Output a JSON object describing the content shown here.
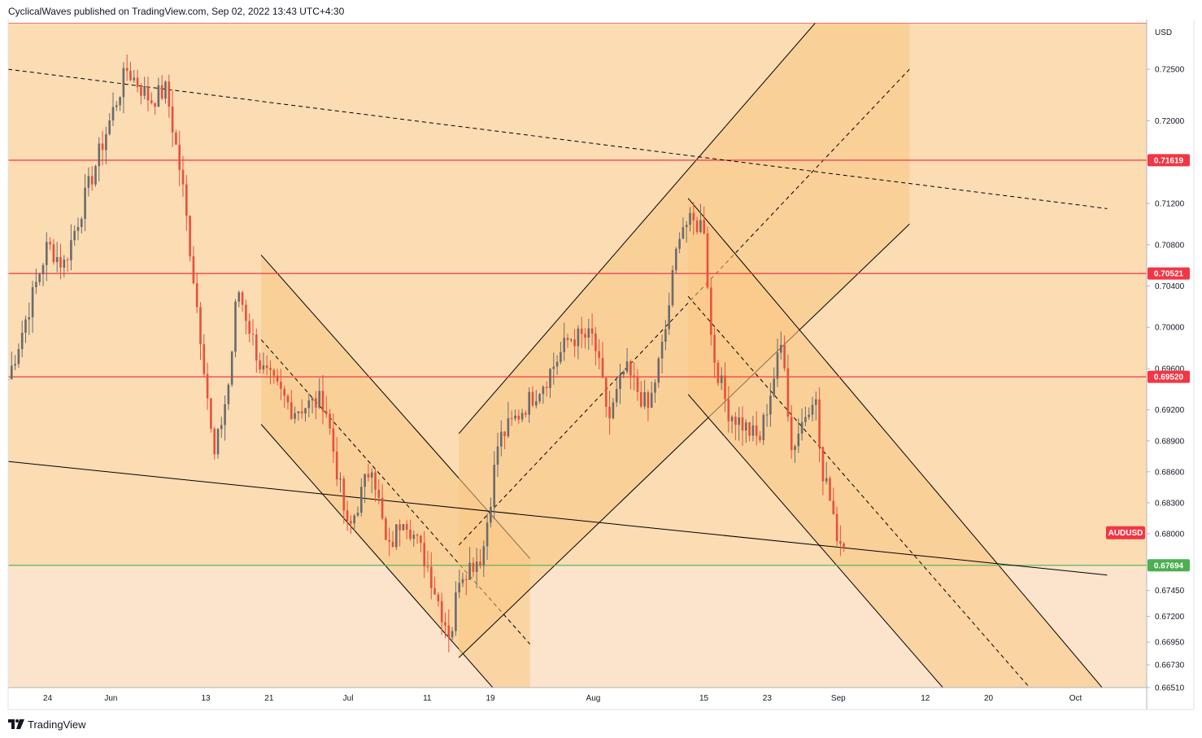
{
  "header": {
    "published_by": "CyclicalWaves published on TradingView.com, Sep 02, 2022 13:43 UTC+4:30"
  },
  "footer": {
    "brand": "TradingView",
    "logo_icon": "tradingview-logo-icon"
  },
  "chart_data": {
    "type": "candlestick",
    "symbol": "AUDUSD",
    "currency": "USD",
    "y_range": [
      0.6651,
      0.7295
    ],
    "y_ticks": [
      "0.72500",
      "0.72000",
      "0.71200",
      "0.70800",
      "0.70400",
      "0.70000",
      "0.69600",
      "0.69200",
      "0.68900",
      "0.68600",
      "0.68300",
      "0.68000",
      "0.67450",
      "0.67200",
      "0.66950",
      "0.66730",
      "0.66510"
    ],
    "x_ticks": [
      {
        "label": "24",
        "date": "2022-05-24"
      },
      {
        "label": "Jun",
        "date": "2022-06-01"
      },
      {
        "label": "13",
        "date": "2022-06-13"
      },
      {
        "label": "21",
        "date": "2022-06-21"
      },
      {
        "label": "Jul",
        "date": "2022-07-01"
      },
      {
        "label": "11",
        "date": "2022-07-11"
      },
      {
        "label": "19",
        "date": "2022-07-19"
      },
      {
        "label": "Aug",
        "date": "2022-08-01"
      },
      {
        "label": "15",
        "date": "2022-08-15"
      },
      {
        "label": "23",
        "date": "2022-08-23"
      },
      {
        "label": "Sep",
        "date": "2022-09-01"
      },
      {
        "label": "12",
        "date": "2022-09-12"
      },
      {
        "label": "20",
        "date": "2022-09-20"
      },
      {
        "label": "Oct",
        "date": "2022-10-01"
      }
    ],
    "horizontal_levels": [
      {
        "value": "0.71619",
        "color": "#f23645"
      },
      {
        "value": "0.70521",
        "color": "#f23645"
      },
      {
        "value": "0.69520",
        "color": "#f23645"
      },
      {
        "value": "0.67694",
        "color": "#4caf50"
      }
    ],
    "top_level": {
      "value": 0.7295,
      "color": "#f23645"
    },
    "last_price_label": {
      "text": "AUDUSD",
      "value": 0.6801,
      "color": "#f23645"
    },
    "colors": {
      "background_upper": "#fbdcb3",
      "background_lower": "#fbe4cb",
      "channel_fill": "#f9c784",
      "up_candle": "#6b6b6b",
      "down_candle": "#e8503a",
      "line": "#000000"
    },
    "candle_anchors": [
      {
        "date": "2022-05-19",
        "close": 0.695
      },
      {
        "date": "2022-05-24",
        "close": 0.708
      },
      {
        "date": "2022-05-26",
        "close": 0.706
      },
      {
        "date": "2022-05-31",
        "close": 0.718
      },
      {
        "date": "2022-06-03",
        "close": 0.725
      },
      {
        "date": "2022-06-06",
        "close": 0.722
      },
      {
        "date": "2022-06-08",
        "close": 0.723
      },
      {
        "date": "2022-06-10",
        "close": 0.714
      },
      {
        "date": "2022-06-13",
        "close": 0.695
      },
      {
        "date": "2022-06-14",
        "close": 0.687
      },
      {
        "date": "2022-06-16",
        "close": 0.695
      },
      {
        "date": "2022-06-17",
        "close": 0.704
      },
      {
        "date": "2022-06-20",
        "close": 0.696
      },
      {
        "date": "2022-06-24",
        "close": 0.692
      },
      {
        "date": "2022-06-28",
        "close": 0.693
      },
      {
        "date": "2022-07-01",
        "close": 0.68
      },
      {
        "date": "2022-07-04",
        "close": 0.687
      },
      {
        "date": "2022-07-06",
        "close": 0.678
      },
      {
        "date": "2022-07-08",
        "close": 0.682
      },
      {
        "date": "2022-07-11",
        "close": 0.677
      },
      {
        "date": "2022-07-13",
        "close": 0.672
      },
      {
        "date": "2022-07-14",
        "close": 0.67
      },
      {
        "date": "2022-07-15",
        "close": 0.676
      },
      {
        "date": "2022-07-18",
        "close": 0.678
      },
      {
        "date": "2022-07-20",
        "close": 0.689
      },
      {
        "date": "2022-07-22",
        "close": 0.691
      },
      {
        "date": "2022-07-26",
        "close": 0.695
      },
      {
        "date": "2022-07-29",
        "close": 0.699
      },
      {
        "date": "2022-08-01",
        "close": 0.699
      },
      {
        "date": "2022-08-03",
        "close": 0.691
      },
      {
        "date": "2022-08-05",
        "close": 0.696
      },
      {
        "date": "2022-08-08",
        "close": 0.692
      },
      {
        "date": "2022-08-10",
        "close": 0.699
      },
      {
        "date": "2022-08-12",
        "close": 0.71
      },
      {
        "date": "2022-08-15",
        "close": 0.71
      },
      {
        "date": "2022-08-16",
        "close": 0.698
      },
      {
        "date": "2022-08-18",
        "close": 0.692
      },
      {
        "date": "2022-08-22",
        "close": 0.689
      },
      {
        "date": "2022-08-25",
        "close": 0.699
      },
      {
        "date": "2022-08-26",
        "close": 0.688
      },
      {
        "date": "2022-08-29",
        "close": 0.694
      },
      {
        "date": "2022-08-30",
        "close": 0.685
      },
      {
        "date": "2022-08-31",
        "close": 0.684
      },
      {
        "date": "2022-09-01",
        "close": 0.679
      },
      {
        "date": "2022-09-02",
        "close": 0.6801
      }
    ],
    "channels": [
      {
        "name": "june-july-descending",
        "fill": true,
        "upper": [
          {
            "date": "2022-06-20",
            "value": 0.707
          },
          {
            "date": "2022-07-24",
            "value": 0.6776
          }
        ],
        "lower": [
          {
            "date": "2022-06-20",
            "value": 0.6906
          },
          {
            "date": "2022-07-24",
            "value": 0.661
          }
        ],
        "mid": [
          {
            "date": "2022-06-20",
            "value": 0.6988
          },
          {
            "date": "2022-07-24",
            "value": 0.6693
          }
        ]
      },
      {
        "name": "july-august-ascending",
        "fill": true,
        "upper": [
          {
            "date": "2022-07-15",
            "value": 0.6897
          },
          {
            "date": "2022-09-10",
            "value": 0.74
          }
        ],
        "lower": [
          {
            "date": "2022-07-15",
            "value": 0.668
          },
          {
            "date": "2022-09-10",
            "value": 0.71
          }
        ],
        "mid": [
          {
            "date": "2022-07-15",
            "value": 0.6789
          },
          {
            "date": "2022-09-10",
            "value": 0.725
          }
        ]
      },
      {
        "name": "august-september-descending",
        "fill": true,
        "upper": [
          {
            "date": "2022-08-13",
            "value": 0.7125
          },
          {
            "date": "2022-10-10",
            "value": 0.66
          }
        ],
        "lower": [
          {
            "date": "2022-08-13",
            "value": 0.6935
          },
          {
            "date": "2022-09-20",
            "value": 0.66
          }
        ],
        "mid": [
          {
            "date": "2022-08-13",
            "value": 0.703
          },
          {
            "date": "2022-10-01",
            "value": 0.66
          }
        ]
      }
    ],
    "trendlines": [
      {
        "name": "long-dashed-resistance",
        "style": "dashed",
        "points": [
          {
            "date": "2022-05-19",
            "value": 0.725
          },
          {
            "date": "2022-10-05",
            "value": 0.7115
          }
        ]
      },
      {
        "name": "long-support",
        "style": "solid",
        "points": [
          {
            "date": "2022-05-19",
            "value": 0.687
          },
          {
            "date": "2022-10-05",
            "value": 0.676
          }
        ]
      }
    ]
  }
}
